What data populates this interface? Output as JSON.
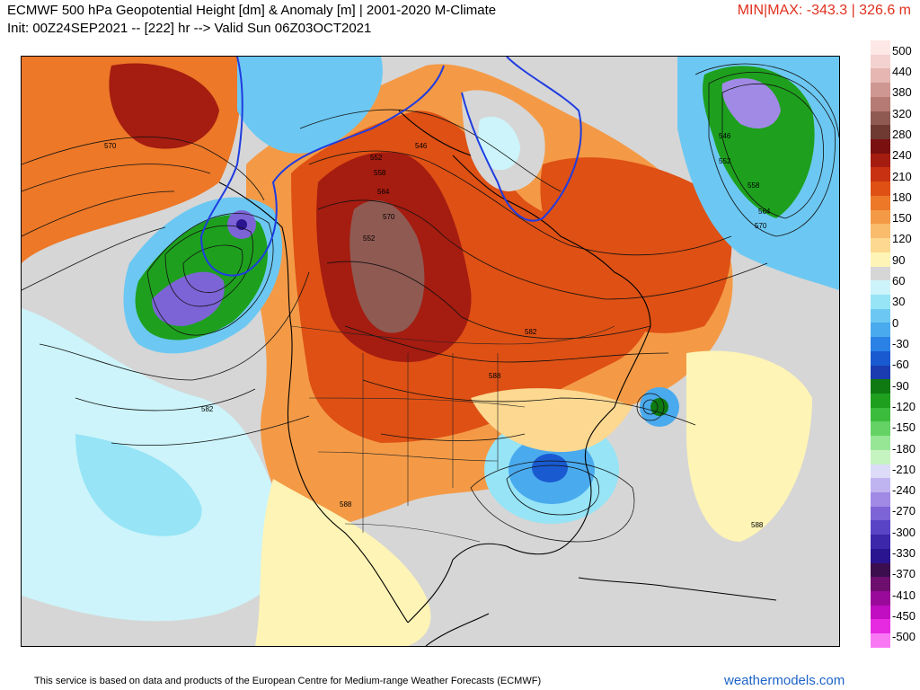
{
  "header": {
    "title": "ECMWF 500 hPa Geopotential Height [dm] & Anomaly [m] | 2001-2020 M-Climate",
    "subtitle": "Init: 00Z24SEP2021 -- [222] hr --> Valid Sun 06Z03OCT2021",
    "minmax": "MIN|MAX: -343.3 | 326.6 m"
  },
  "map": {
    "contour_labels": [
      {
        "text": "570"
      },
      {
        "text": "552"
      },
      {
        "text": "558"
      },
      {
        "text": "564"
      },
      {
        "text": "570"
      },
      {
        "text": "582"
      },
      {
        "text": "582"
      },
      {
        "text": "588"
      },
      {
        "text": "588"
      },
      {
        "text": "588"
      },
      {
        "text": "546"
      },
      {
        "text": "552"
      },
      {
        "text": "558"
      },
      {
        "text": "564"
      },
      {
        "text": "570"
      },
      {
        "text": "546"
      },
      {
        "text": "552"
      }
    ]
  },
  "colorbar": {
    "labels": [
      "500",
      "440",
      "380",
      "320",
      "280",
      "240",
      "210",
      "180",
      "150",
      "120",
      "90",
      "60",
      "30",
      "0",
      "-30",
      "-60",
      "-90",
      "-120",
      "-150",
      "-180",
      "-210",
      "-240",
      "-270",
      "-300",
      "-330",
      "-370",
      "-410",
      "-450",
      "-500"
    ],
    "colors": [
      "#fde8e6",
      "#f4d2cf",
      "#e6b6b2",
      "#cf9792",
      "#b57a73",
      "#8f5a52",
      "#6e3a32",
      "#7a1010",
      "#a51c10",
      "#c83212",
      "#de5014",
      "#ec7828",
      "#f49a46",
      "#f8bc6c",
      "#fcd890",
      "#fef4b6",
      "#d6d6d6",
      "#ccf4fa",
      "#96e4f6",
      "#6cc8f2",
      "#4aaaee",
      "#2a82e6",
      "#1a5ad0",
      "#1a3cb0",
      "#0f7a12",
      "#1ea01e",
      "#3cbc3c",
      "#64d264",
      "#96e696",
      "#c6f4c0",
      "#dcdcf8",
      "#c0b4f0",
      "#a08ae6",
      "#7c64d6",
      "#5a44c6",
      "#3c26aa",
      "#2a1490",
      "#3c0e4e",
      "#6e0e6e",
      "#9a0a9a",
      "#c20ec2",
      "#e62ae2",
      "#f878f4"
    ]
  },
  "footer": {
    "credit": "This service is based on data and products of the European Centre for Medium-range Weather Forecasts (ECMWF)",
    "brand": "weathermodels.com"
  }
}
